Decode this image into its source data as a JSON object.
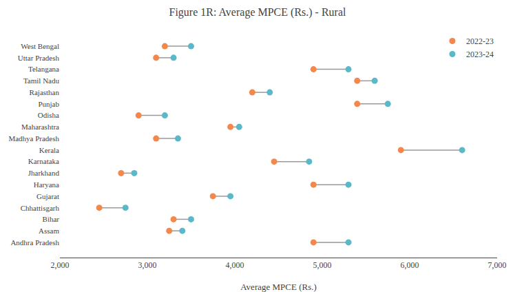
{
  "chart_data": {
    "type": "dumbbell",
    "title": "Figure 1R: Average MPCE (Rs.) - Rural",
    "xlabel": "Average MPCE (Rs.)",
    "categories": [
      "West Bengal",
      "Uttar Pradesh",
      "Telangana",
      "Tamil Nadu",
      "Rajasthan",
      "Punjab",
      "Odisha",
      "Maharashtra",
      "Madhya Pradesh",
      "Kerala",
      "Karnataka",
      "Jharkhand",
      "Haryana",
      "Gujarat",
      "Chhattisgarh",
      "Bihar",
      "Assam",
      "Andhra Pradesh"
    ],
    "series": [
      {
        "name": "2022-23",
        "color": "#F4874B",
        "values": [
          3200,
          3100,
          4900,
          5400,
          4200,
          5400,
          2900,
          3950,
          3100,
          5900,
          4450,
          2700,
          4900,
          3750,
          2450,
          3300,
          3250,
          4900
        ]
      },
      {
        "name": "2023-24",
        "color": "#5BB8C8",
        "values": [
          3500,
          3300,
          5300,
          5600,
          4400,
          5750,
          3200,
          4050,
          3350,
          6600,
          4850,
          2850,
          5300,
          3950,
          2750,
          3500,
          3400,
          5300
        ]
      }
    ],
    "color": "#999999",
    "xlim": [
      2000,
      7000
    ],
    "xticks": [
      {
        "value": 2000,
        "label": "2,000"
      },
      {
        "value": 3000,
        "label": "3,000"
      },
      {
        "value": 4000,
        "label": "4,000"
      },
      {
        "value": 5000,
        "label": "5,000"
      },
      {
        "value": 6000,
        "label": "6,000"
      },
      {
        "value": 7000,
        "label": "7,000"
      }
    ],
    "grid": false,
    "legend": "upper right"
  }
}
